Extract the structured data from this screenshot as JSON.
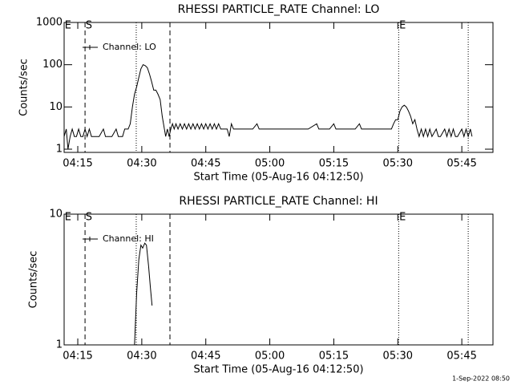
{
  "chart_data": [
    {
      "type": "line",
      "title": "RHESSI PARTICLE_RATE Channel: LO",
      "xlabel": "Start Time (05-Aug-16 04:12:50)",
      "ylabel": "Counts/sec",
      "ylog": true,
      "xlim": [
        11.8,
        112.3
      ],
      "ylim": [
        0.84,
        1000
      ],
      "xticks": [
        {
          "value": 15,
          "label": "04:15"
        },
        {
          "value": 30,
          "label": "04:30"
        },
        {
          "value": 45,
          "label": "04:45"
        },
        {
          "value": 60,
          "label": "05:00"
        },
        {
          "value": 75,
          "label": "05:15"
        },
        {
          "value": 90,
          "label": "05:30"
        },
        {
          "value": 105,
          "label": "05:45"
        }
      ],
      "yticks": [
        1,
        10,
        100,
        1000
      ],
      "x": [
        11.8,
        12.3,
        12.7,
        13.2,
        13.7,
        14.2,
        14.7,
        15.2,
        15.7,
        16.2,
        16.7,
        17.2,
        17.7,
        18.2,
        19,
        20,
        21,
        21.5,
        22,
        23,
        24,
        24.5,
        25.5,
        26,
        26.8,
        27.3,
        27.8,
        28.3,
        28.8,
        29.3,
        29.8,
        30.3,
        30.8,
        31.3,
        31.8,
        32.3,
        32.8,
        33.3,
        33.8,
        34.3,
        34.8,
        35.3,
        35.6,
        36,
        36.4,
        36.8,
        37.2,
        37.6,
        38,
        38.5,
        39,
        39.5,
        40,
        40.5,
        41,
        41.5,
        42,
        42.5,
        43,
        43.5,
        44,
        44.5,
        45,
        45.5,
        46,
        46.5,
        47,
        47.5,
        48,
        48.5,
        49,
        50,
        50.5,
        51,
        51.5,
        53,
        55,
        56,
        57,
        57.5,
        60,
        62,
        63,
        65,
        67,
        69,
        71,
        71.5,
        73,
        74,
        75,
        75.5,
        77,
        79,
        80,
        81,
        81.5,
        83,
        85,
        87,
        88.5,
        89,
        89.5,
        90,
        90.5,
        91,
        91.5,
        92,
        92.5,
        93,
        93.5,
        94,
        94.5,
        95,
        95.5,
        96,
        96.5,
        97,
        97.5,
        98,
        99,
        99.5,
        100,
        101,
        101.5,
        102,
        102.5,
        103,
        103.5,
        104,
        105,
        105.5,
        106,
        106.5,
        107,
        107.4
      ],
      "series": [
        {
          "name": "Channel: LO",
          "color": "#000000",
          "values": [
            2,
            3,
            1,
            2,
            3,
            2,
            2,
            3,
            2,
            2,
            3,
            2,
            3,
            2,
            2,
            2,
            3,
            2,
            2,
            2,
            3,
            2,
            2,
            3,
            3,
            4,
            10,
            20,
            30,
            50,
            80,
            100,
            95,
            85,
            60,
            40,
            25,
            25,
            20,
            15,
            6,
            3,
            2,
            3,
            2,
            3,
            4,
            3,
            4,
            3,
            4,
            3,
            4,
            3,
            4,
            3,
            4,
            3,
            4,
            3,
            4,
            3,
            4,
            3,
            4,
            3,
            4,
            3,
            4,
            3,
            3,
            3,
            2,
            4,
            3,
            3,
            3,
            3,
            4,
            3,
            3,
            3,
            3,
            3,
            3,
            3,
            4,
            3,
            3,
            3,
            4,
            3,
            3,
            3,
            3,
            4,
            3,
            3,
            3,
            3,
            3,
            4,
            5,
            5,
            8,
            10,
            11,
            10,
            8,
            6,
            4,
            5,
            3,
            2,
            3,
            2,
            3,
            2,
            3,
            2,
            3,
            2,
            2,
            3,
            2,
            3,
            2,
            3,
            2,
            2,
            3,
            2,
            3,
            2,
            3,
            2
          ]
        }
      ],
      "annotations": [
        {
          "text": "E",
          "x": 12.5
        },
        {
          "text": "S",
          "x": 17.4
        },
        {
          "text": "E",
          "x": 90.9
        }
      ],
      "markers": [
        {
          "x": 16.7,
          "style": "dashed"
        },
        {
          "x": 36.6,
          "style": "dashed"
        },
        {
          "x": 28.7,
          "style": "dotted"
        },
        {
          "x": 90.2,
          "style": "dotted"
        },
        {
          "x": 106.5,
          "style": "dotted"
        }
      ]
    },
    {
      "type": "line",
      "title": "RHESSI PARTICLE_RATE Channel: HI",
      "xlabel": "Start Time (05-Aug-16 04:12:50)",
      "ylabel": "Counts/sec",
      "ylog": true,
      "xlim": [
        11.8,
        112.3
      ],
      "ylim": [
        1,
        10
      ],
      "xticks": [
        {
          "value": 15,
          "label": "04:15"
        },
        {
          "value": 30,
          "label": "04:30"
        },
        {
          "value": 45,
          "label": "04:45"
        },
        {
          "value": 60,
          "label": "05:00"
        },
        {
          "value": 75,
          "label": "05:15"
        },
        {
          "value": 90,
          "label": "05:30"
        },
        {
          "value": 105,
          "label": "05:45"
        }
      ],
      "yticks": [
        1,
        10
      ],
      "x": [
        28.3,
        28.8,
        29.3,
        29.8,
        30.2,
        30.7,
        31.1,
        31.6,
        32.0,
        32.4
      ],
      "series": [
        {
          "name": "Channel: HI",
          "color": "#000000",
          "values": [
            1.0,
            2.5,
            4.5,
            5.8,
            5.5,
            6.0,
            5.8,
            4.0,
            2.8,
            2.0
          ]
        }
      ],
      "annotations": [
        {
          "text": "E",
          "x": 12.5
        },
        {
          "text": "S",
          "x": 17.4
        },
        {
          "text": "E",
          "x": 90.9
        }
      ],
      "markers": [
        {
          "x": 16.7,
          "style": "dashed"
        },
        {
          "x": 36.6,
          "style": "dashed"
        },
        {
          "x": 28.7,
          "style": "dotted"
        },
        {
          "x": 90.2,
          "style": "dotted"
        },
        {
          "x": 106.5,
          "style": "dotted"
        }
      ]
    }
  ],
  "footer": "1-Sep-2022 08:50"
}
